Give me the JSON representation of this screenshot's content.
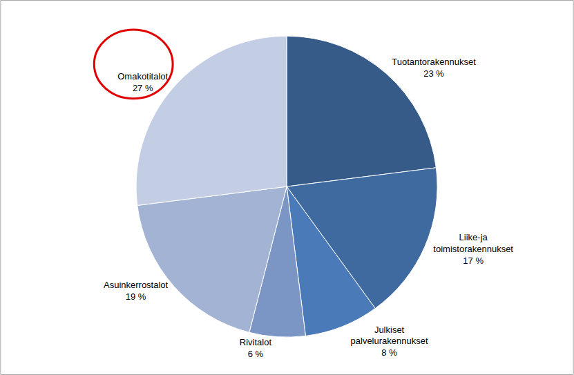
{
  "chart_data": {
    "type": "pie",
    "categories": [
      "Tuotantorakennukset",
      "Liike-ja toimistorakennukset",
      "Julkiset palvelurakennukset",
      "Rivitalot",
      "Asuinkerrostalot",
      "Omakotitalot"
    ],
    "values": [
      23,
      17,
      8,
      6,
      19,
      27
    ],
    "value_labels": [
      "23 %",
      "17 %",
      "8 %",
      "6 %",
      "19 %",
      "27 %"
    ],
    "colors": [
      "#375b88",
      "#3f6a9f",
      "#4a7ab8",
      "#7b95c4",
      "#a3b3d4",
      "#c3cde3"
    ],
    "data_labels": true
  }
}
